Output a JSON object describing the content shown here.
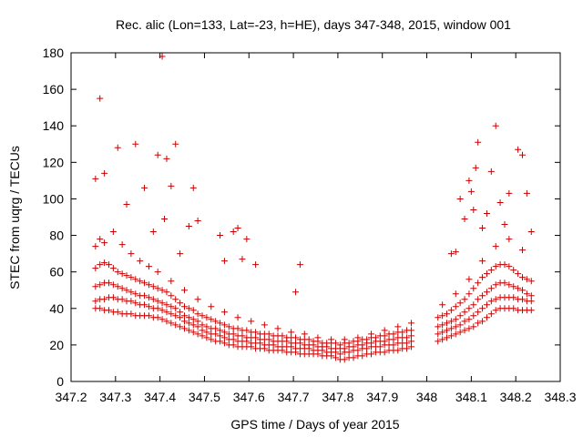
{
  "chart_data": {
    "type": "scatter",
    "title": "Rec. alic (Lon=133, Lat=-23, h=HE), days 347-348, 2015, window 001",
    "xlabel": "GPS time / Days of year 2015",
    "ylabel": "STEC from uqrg / TECUs",
    "xlim": [
      347.2,
      348.3
    ],
    "ylim": [
      0,
      180
    ],
    "xticks": [
      347.2,
      347.3,
      347.4,
      347.5,
      347.6,
      347.7,
      347.8,
      347.9,
      348.0,
      348.1,
      348.2,
      348.3
    ],
    "xtick_labels": [
      "347.2",
      "347.3",
      "347.4",
      "347.5",
      "347.6",
      "347.7",
      "347.8",
      "347.9",
      "348",
      "348.1",
      "348.2",
      "348.3"
    ],
    "yticks": [
      0,
      20,
      40,
      60,
      80,
      100,
      120,
      140,
      160,
      180
    ],
    "ytick_labels": [
      "0",
      "20",
      "40",
      "60",
      "80",
      "100",
      "120",
      "140",
      "160",
      "180"
    ],
    "grid": false,
    "marker": "+",
    "color": "#cc0000",
    "series": [
      {
        "x": [
          347.255,
          347.265,
          347.275,
          347.285,
          347.295,
          347.305,
          347.315,
          347.325,
          347.335,
          347.345,
          347.355,
          347.365,
          347.375,
          347.385,
          347.395,
          347.405,
          347.415,
          347.425,
          347.435,
          347.445,
          347.455,
          347.465,
          347.475,
          347.485,
          347.495,
          347.505,
          347.515,
          347.525,
          347.535,
          347.545,
          347.555,
          347.565,
          347.575,
          347.585,
          347.595,
          347.605,
          347.615,
          347.625,
          347.635,
          347.645,
          347.655,
          347.665,
          347.675,
          347.685,
          347.695,
          347.705,
          347.715,
          347.725,
          347.735,
          347.745,
          347.755,
          347.765,
          347.775,
          347.785,
          347.795,
          347.805,
          347.815,
          347.825,
          347.835,
          347.845,
          347.855,
          347.865,
          347.875,
          347.885,
          347.895,
          347.905,
          347.915,
          347.925,
          347.935,
          347.945,
          347.955,
          347.965,
          348.025,
          348.035,
          348.045,
          348.055,
          348.065,
          348.075,
          348.085,
          348.095,
          348.105,
          348.115,
          348.125,
          348.135,
          348.145,
          348.155,
          348.165,
          348.175,
          348.185,
          348.195,
          348.205,
          348.215,
          348.225,
          348.235
        ],
        "y": [
          40,
          40,
          39,
          39,
          38,
          38,
          37,
          37,
          37,
          36,
          36,
          36,
          36,
          35,
          35,
          34,
          33,
          32,
          31,
          30,
          29,
          28,
          27,
          26,
          25,
          24,
          23,
          22,
          22,
          21,
          20,
          20,
          19,
          19,
          19,
          19,
          18,
          18,
          18,
          17,
          17,
          17,
          17,
          16,
          16,
          16,
          15,
          15,
          15,
          15,
          15,
          14,
          14,
          14,
          13,
          12,
          12,
          13,
          13,
          14,
          14,
          15,
          15,
          16,
          16,
          16,
          17,
          17,
          17,
          18,
          18,
          19,
          22,
          23,
          24,
          25,
          26,
          27,
          28,
          29,
          30,
          32,
          33,
          35,
          37,
          39,
          40,
          40,
          40,
          40,
          39,
          39,
          39,
          39
        ]
      },
      {
        "x": [
          347.255,
          347.265,
          347.275,
          347.285,
          347.295,
          347.305,
          347.315,
          347.325,
          347.335,
          347.345,
          347.355,
          347.365,
          347.375,
          347.385,
          347.395,
          347.405,
          347.415,
          347.425,
          347.435,
          347.445,
          347.455,
          347.465,
          347.475,
          347.485,
          347.495,
          347.505,
          347.515,
          347.525,
          347.535,
          347.545,
          347.555,
          347.565,
          347.575,
          347.585,
          347.595,
          347.605,
          347.615,
          347.625,
          347.635,
          347.645,
          347.655,
          347.665,
          347.675,
          347.685,
          347.695,
          347.705,
          347.715,
          347.725,
          347.735,
          347.745,
          347.755,
          347.765,
          347.775,
          347.785,
          347.795,
          347.805,
          347.815,
          347.825,
          347.835,
          347.845,
          347.855,
          347.865,
          347.875,
          347.885,
          347.895,
          347.905,
          347.915,
          347.925,
          347.935,
          347.945,
          347.955,
          347.965,
          348.025,
          348.035,
          348.045,
          348.055,
          348.065,
          348.075,
          348.085,
          348.095,
          348.105,
          348.115,
          348.125,
          348.135,
          348.145,
          348.155,
          348.165,
          348.175,
          348.185,
          348.195,
          348.205,
          348.215,
          348.225,
          348.235
        ],
        "y": [
          44,
          45,
          45,
          46,
          46,
          45,
          45,
          44,
          44,
          43,
          42,
          42,
          41,
          40,
          40,
          39,
          38,
          37,
          36,
          35,
          33,
          32,
          31,
          30,
          28,
          27,
          26,
          26,
          25,
          24,
          23,
          23,
          22,
          22,
          22,
          21,
          21,
          21,
          20,
          20,
          20,
          19,
          19,
          19,
          19,
          18,
          18,
          18,
          18,
          17,
          17,
          17,
          16,
          16,
          16,
          15,
          16,
          16,
          17,
          17,
          18,
          18,
          19,
          19,
          19,
          20,
          20,
          20,
          21,
          21,
          21,
          22,
          26,
          27,
          28,
          29,
          30,
          31,
          33,
          34,
          36,
          38,
          40,
          42,
          44,
          45,
          46,
          46,
          46,
          46,
          45,
          45,
          44,
          44
        ]
      },
      {
        "x": [
          347.255,
          347.265,
          347.275,
          347.285,
          347.295,
          347.305,
          347.315,
          347.325,
          347.335,
          347.345,
          347.355,
          347.365,
          347.375,
          347.385,
          347.395,
          347.405,
          347.415,
          347.425,
          347.435,
          347.445,
          347.455,
          347.465,
          347.475,
          347.485,
          347.495,
          347.505,
          347.515,
          347.525,
          347.535,
          347.545,
          347.555,
          347.565,
          347.575,
          347.585,
          347.595,
          347.605,
          347.615,
          347.625,
          347.635,
          347.645,
          347.655,
          347.665,
          347.675,
          347.685,
          347.695,
          347.705,
          347.715,
          347.725,
          347.735,
          347.745,
          347.755,
          347.765,
          347.775,
          347.785,
          347.795,
          347.805,
          347.815,
          347.825,
          347.835,
          347.845,
          347.855,
          347.865,
          347.875,
          347.885,
          347.895,
          347.905,
          347.915,
          347.925,
          347.935,
          347.945,
          347.955,
          347.965,
          348.025,
          348.035,
          348.045,
          348.055,
          348.065,
          348.075,
          348.085,
          348.095,
          348.105,
          348.115,
          348.125,
          348.135,
          348.145,
          348.155,
          348.165,
          348.175,
          348.185,
          348.195,
          348.205,
          348.215,
          348.225,
          348.235
        ],
        "y": [
          52,
          53,
          54,
          54,
          53,
          52,
          51,
          50,
          49,
          48,
          47,
          47,
          46,
          45,
          44,
          43,
          42,
          41,
          40,
          38,
          36,
          35,
          34,
          33,
          31,
          30,
          29,
          29,
          28,
          27,
          26,
          26,
          25,
          25,
          24,
          24,
          24,
          23,
          23,
          23,
          22,
          22,
          22,
          22,
          21,
          21,
          21,
          20,
          20,
          20,
          19,
          19,
          19,
          18,
          18,
          18,
          18,
          19,
          19,
          20,
          20,
          21,
          21,
          22,
          22,
          22,
          23,
          23,
          24,
          24,
          24,
          25,
          30,
          31,
          32,
          33,
          34,
          36,
          38,
          40,
          42,
          45,
          47,
          49,
          51,
          53,
          54,
          54,
          53,
          52,
          51,
          50,
          48,
          47
        ]
      },
      {
        "x": [
          347.255,
          347.265,
          347.275,
          347.285,
          347.295,
          347.305,
          347.315,
          347.325,
          347.335,
          347.345,
          347.355,
          347.365,
          347.375,
          347.385,
          347.395,
          347.405,
          347.415,
          347.425,
          347.435,
          347.445,
          347.455,
          347.465,
          347.475,
          347.485,
          347.495,
          347.505,
          347.515,
          347.525,
          347.535,
          347.545,
          347.555,
          347.565,
          347.575,
          347.585,
          347.595,
          347.605,
          347.615,
          347.625,
          347.635,
          347.645,
          347.655,
          347.665,
          347.675,
          347.685,
          347.695,
          347.705,
          347.715,
          347.725,
          347.735,
          347.745,
          347.755,
          347.765,
          347.775,
          347.785,
          347.795,
          347.805,
          347.815,
          347.825,
          347.835,
          347.845,
          347.855,
          347.865,
          347.875,
          347.885,
          347.895,
          347.905,
          347.915,
          347.925,
          347.935,
          347.945,
          347.955,
          347.965,
          348.025,
          348.035,
          348.045,
          348.055,
          348.065,
          348.075,
          348.085,
          348.095,
          348.105,
          348.115,
          348.125,
          348.135,
          348.145,
          348.155,
          348.165,
          348.175,
          348.185,
          348.195,
          348.205,
          348.215,
          348.225,
          348.235
        ],
        "y": [
          62,
          64,
          65,
          64,
          62,
          60,
          59,
          58,
          57,
          56,
          55,
          54,
          53,
          52,
          51,
          50,
          49,
          47,
          45,
          43,
          41,
          40,
          39,
          37,
          36,
          35,
          34,
          33,
          32,
          31,
          30,
          29,
          29,
          28,
          28,
          27,
          27,
          26,
          26,
          26,
          25,
          25,
          25,
          24,
          24,
          24,
          23,
          23,
          23,
          22,
          22,
          21,
          21,
          21,
          21,
          20,
          21,
          21,
          22,
          22,
          23,
          23,
          24,
          24,
          25,
          25,
          26,
          26,
          27,
          27,
          28,
          28,
          35,
          36,
          37,
          39,
          41,
          43,
          45,
          48,
          51,
          54,
          57,
          59,
          61,
          63,
          64,
          64,
          63,
          61,
          59,
          57,
          56,
          55
        ]
      },
      {
        "x": [
          347.255,
          347.265,
          347.275,
          347.295,
          347.315,
          347.335,
          347.355,
          347.375,
          347.395,
          347.425,
          347.455,
          347.485,
          347.515,
          347.545,
          347.575,
          347.605,
          347.635,
          347.665,
          347.695,
          347.725,
          347.755,
          347.785,
          347.815,
          347.845,
          347.875,
          347.905,
          347.935,
          347.965,
          348.035,
          348.065,
          348.095,
          348.125,
          348.155,
          348.185,
          348.215
        ],
        "y": [
          74,
          78,
          76,
          82,
          75,
          70,
          66,
          63,
          60,
          55,
          50,
          45,
          41,
          38,
          35,
          33,
          31,
          29,
          27,
          26,
          24,
          23,
          23,
          24,
          26,
          28,
          30,
          32,
          42,
          48,
          56,
          66,
          74,
          78,
          72
        ]
      },
      {
        "x": [
          347.255,
          347.265,
          347.275,
          347.305,
          347.325,
          347.345,
          347.365,
          347.385,
          347.395,
          347.405,
          347.41,
          347.415,
          347.425,
          347.435,
          347.445,
          347.465,
          347.475,
          347.485,
          347.535,
          347.545,
          347.565,
          347.575,
          347.585,
          347.595,
          347.615,
          347.705,
          347.715,
          348.055,
          348.065,
          348.075,
          348.085,
          348.095,
          348.1,
          348.105,
          348.11,
          348.115,
          348.125,
          348.135,
          348.145,
          348.155,
          348.165,
          348.175,
          348.185,
          348.205,
          348.215,
          348.225,
          348.235
        ],
        "y": [
          111,
          155,
          114,
          128,
          97,
          130,
          106,
          82,
          124,
          178,
          89,
          122,
          107,
          130,
          70,
          85,
          106,
          88,
          80,
          66,
          82,
          84,
          67,
          78,
          64,
          49,
          64,
          70,
          71,
          100,
          89,
          110,
          104,
          94,
          117,
          131,
          84,
          92,
          115,
          140,
          98,
          86,
          103,
          127,
          124,
          103,
          82
        ]
      }
    ]
  }
}
